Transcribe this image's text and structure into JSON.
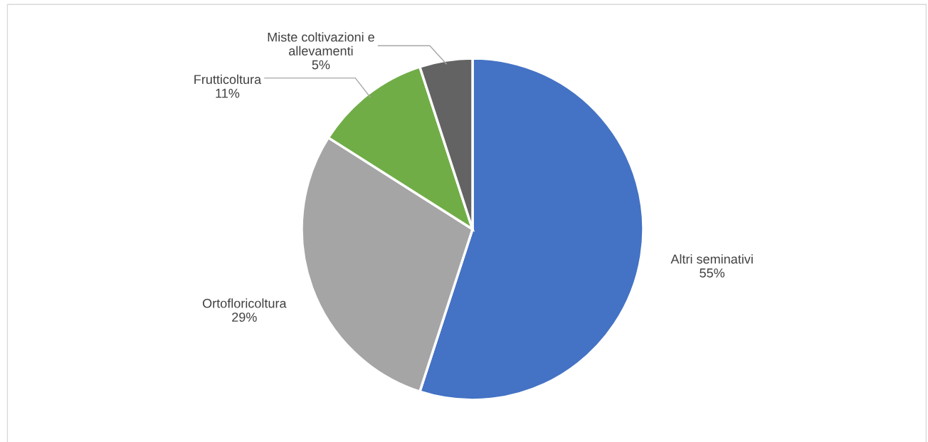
{
  "chart_data": {
    "type": "pie",
    "categories": [
      "Altri seminativi",
      "Ortofloricoltura",
      "Frutticoltura",
      "Miste coltivazioni e\nallevamenti"
    ],
    "values": [
      55,
      29,
      11,
      5
    ],
    "value_labels": [
      "55%",
      "29%",
      "11%",
      "5%"
    ],
    "colors": [
      "#4472c4",
      "#a5a5a5",
      "#70ad47",
      "#636363"
    ],
    "legend": false
  }
}
